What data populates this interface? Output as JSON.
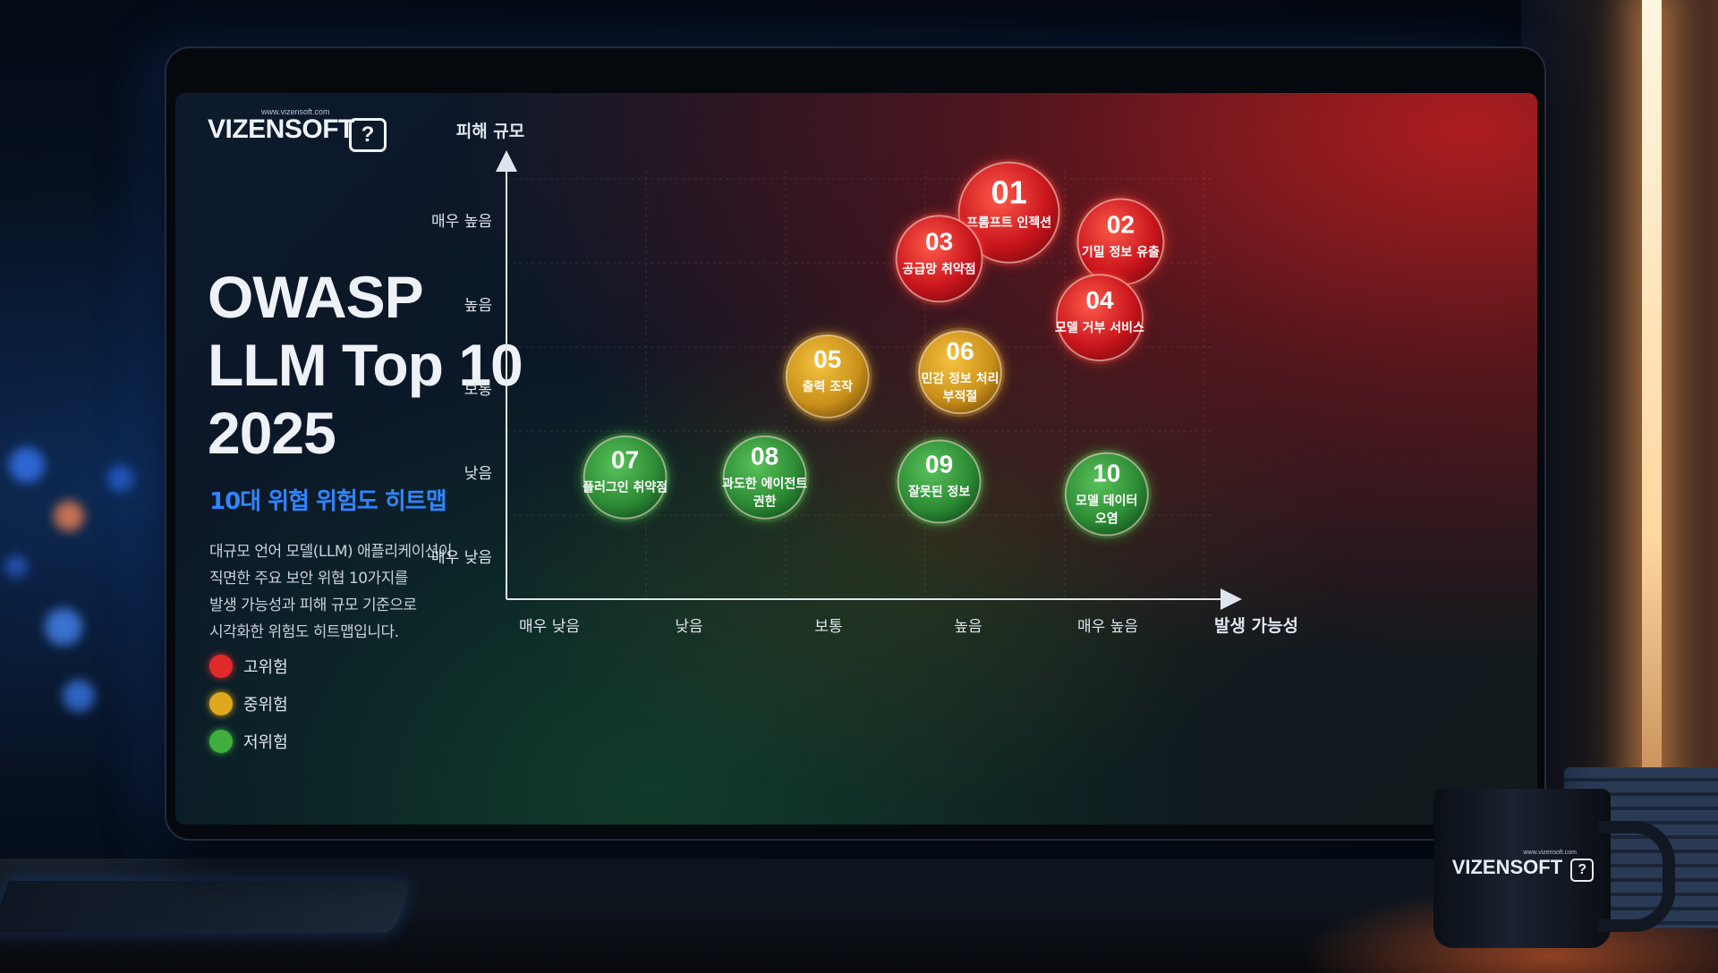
{
  "logo": {
    "url": "www.vizensoft.com",
    "word": "VIZENSOFT",
    "q": "?"
  },
  "title_lines": [
    "OWASP",
    "LLM Top 10",
    "2025"
  ],
  "subtitle": "10대 위협 위험도 히트맵",
  "description": [
    "대규모 언어 모델(LLM) 애플리케이션이",
    "직면한 주요 보안 위협 10가지를",
    "발생 가능성과 피해 규모 기준으로",
    "시각화한 위험도 히트맵입니다."
  ],
  "legend": [
    {
      "label": "고위험",
      "color": "#e02a2a"
    },
    {
      "label": "중위험",
      "color": "#e0a81e"
    },
    {
      "label": "저위험",
      "color": "#3fae3f"
    }
  ],
  "mug": {
    "url": "www.vizensoft.com",
    "word": "VIZENSOFT",
    "q": "?"
  },
  "chart_data": {
    "type": "scatter",
    "xlabel": "발생 가능성",
    "ylabel": "피해 규모",
    "x_categories": [
      "매우 낮음",
      "낮음",
      "보통",
      "높음",
      "매우 높음"
    ],
    "y_categories": [
      "매우 낮음",
      "낮음",
      "보통",
      "높음",
      "매우 높음"
    ],
    "xlim": [
      0.5,
      5.5
    ],
    "ylim": [
      0.5,
      5.5
    ],
    "grid": true,
    "points": [
      {
        "id": "01",
        "label": [
          "프롬프트 인젝션"
        ],
        "x": 4.1,
        "y": 5.1,
        "risk": "고위험"
      },
      {
        "id": "02",
        "label": [
          "기밀 정보 유출"
        ],
        "x": 4.9,
        "y": 4.75,
        "risk": "고위험"
      },
      {
        "id": "03",
        "label": [
          "공급망 취약점"
        ],
        "x": 3.6,
        "y": 4.55,
        "risk": "고위험"
      },
      {
        "id": "04",
        "label": [
          "모델 거부 서비스"
        ],
        "x": 4.75,
        "y": 3.85,
        "risk": "고위험"
      },
      {
        "id": "05",
        "label": [
          "출력 조작"
        ],
        "x": 2.8,
        "y": 3.15,
        "risk": "중위험"
      },
      {
        "id": "06",
        "label": [
          "민감 정보 처리",
          "부적절"
        ],
        "x": 3.75,
        "y": 3.2,
        "risk": "중위험"
      },
      {
        "id": "07",
        "label": [
          "플러그인 취약점"
        ],
        "x": 1.35,
        "y": 1.95,
        "risk": "저위험"
      },
      {
        "id": "08",
        "label": [
          "과도한 에이전트",
          "권한"
        ],
        "x": 2.35,
        "y": 1.95,
        "risk": "저위험"
      },
      {
        "id": "09",
        "label": [
          "잘못된 정보"
        ],
        "x": 3.6,
        "y": 1.9,
        "risk": "저위험"
      },
      {
        "id": "10",
        "label": [
          "모델 데이터",
          "오염"
        ],
        "x": 4.8,
        "y": 1.75,
        "risk": "저위험"
      }
    ]
  }
}
